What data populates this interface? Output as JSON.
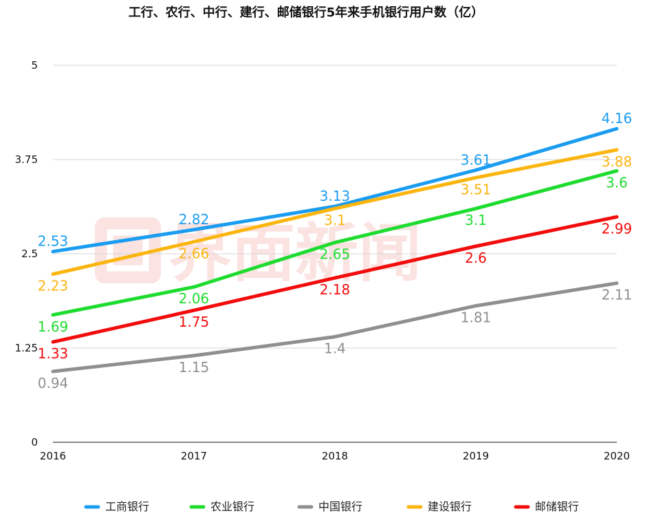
{
  "chart_data": {
    "type": "line",
    "title": "工行、农行、中行、建行、邮储银行5年来手机银行用户数（亿）",
    "categories": [
      "2016",
      "2017",
      "2018",
      "2019",
      "2020"
    ],
    "ylim": [
      0,
      5
    ],
    "yticks": [
      0,
      1.25,
      2.5,
      3.75,
      5
    ],
    "ytick_labels": [
      "0",
      "1.25",
      "2.5",
      "3.75",
      "5"
    ],
    "xlabel": "",
    "ylabel": "",
    "grid": true,
    "legend": "bottom",
    "watermark": "界面新闻",
    "series": [
      {
        "name": "工商银行",
        "color": "#1a9cf0",
        "values": [
          2.53,
          2.82,
          3.13,
          3.61,
          4.16
        ],
        "labels": [
          "2.53",
          "2.82",
          "3.13",
          "3.61",
          "4.16"
        ]
      },
      {
        "name": "农业银行",
        "color": "#1ddc2e",
        "values": [
          1.69,
          2.06,
          2.65,
          3.1,
          3.6
        ],
        "labels": [
          "1.69",
          "2.06",
          "2.65",
          "3.1",
          "3.6"
        ]
      },
      {
        "name": "中国银行",
        "color": "#8f8f8f",
        "values": [
          0.94,
          1.15,
          1.4,
          1.81,
          2.11
        ],
        "labels": [
          "0.94",
          "1.15",
          "1.4",
          "1.81",
          "2.11"
        ]
      },
      {
        "name": "建设银行",
        "color": "#fbb50f",
        "values": [
          2.23,
          2.66,
          3.1,
          3.51,
          3.88
        ],
        "labels": [
          "2.23",
          "2.66",
          "3.1",
          "3.51",
          "3.88"
        ]
      },
      {
        "name": "邮储银行",
        "color": "#f20c0c",
        "values": [
          1.33,
          1.75,
          2.18,
          2.6,
          2.99
        ],
        "labels": [
          "1.33",
          "1.75",
          "2.18",
          "2.6",
          "2.99"
        ]
      }
    ]
  }
}
